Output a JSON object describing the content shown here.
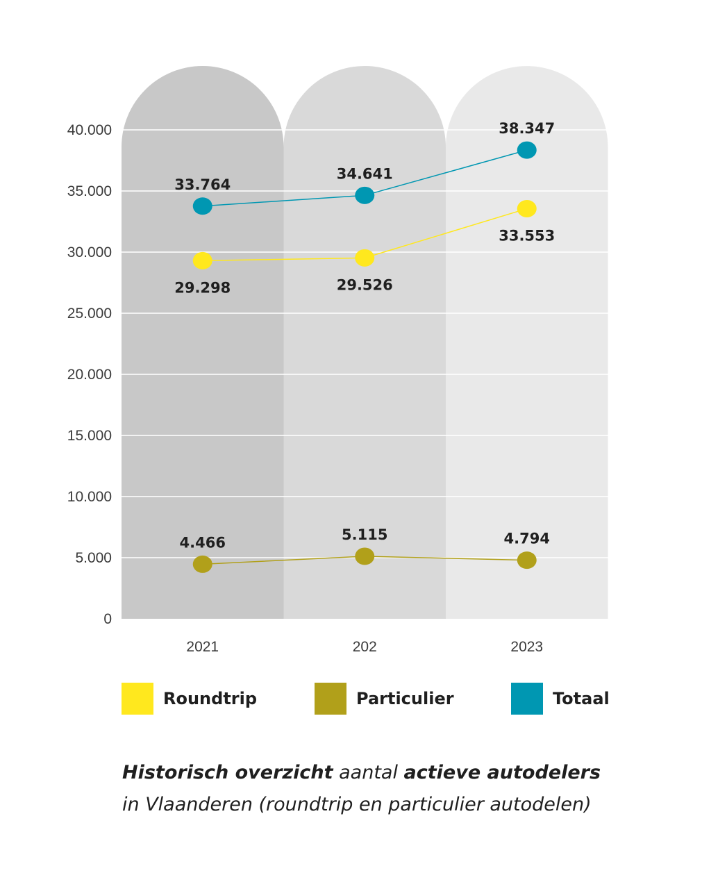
{
  "chart_data": {
    "type": "line",
    "categories": [
      "2021",
      "202",
      "2023"
    ],
    "y_ticks": [
      "0",
      "5.000",
      "10.000",
      "15.000",
      "20.000",
      "25.000",
      "30.000",
      "35.000",
      "40.000"
    ],
    "ylim": [
      0,
      40000
    ],
    "grid": true,
    "legend_position": "bottom",
    "series": [
      {
        "name": "Roundtrip",
        "color": "#FFE81E",
        "values": [
          29298,
          29526,
          33553
        ],
        "labels": [
          "29.298",
          "29.526",
          "33.553"
        ],
        "label_side": "below"
      },
      {
        "name": "Particulier",
        "color": "#B1A01A",
        "values": [
          4466,
          5115,
          4794
        ],
        "labels": [
          "4.466",
          "5.115",
          "4.794"
        ],
        "label_side": "above"
      },
      {
        "name": "Totaal",
        "color": "#0097B2",
        "values": [
          33764,
          34641,
          38347
        ],
        "labels": [
          "33.764",
          "34.641",
          "38.347"
        ],
        "label_side": "above"
      }
    ],
    "column_colors": [
      "#C8C8C8",
      "#D9D9D9",
      "#E9E9E9"
    ]
  },
  "caption": {
    "part1_bold": "Historisch overzicht",
    "part2": " aantal ",
    "part3_bold": "actieve autodelers",
    "line2": "in Vlaanderen (roundtrip en particulier autodelen)"
  }
}
